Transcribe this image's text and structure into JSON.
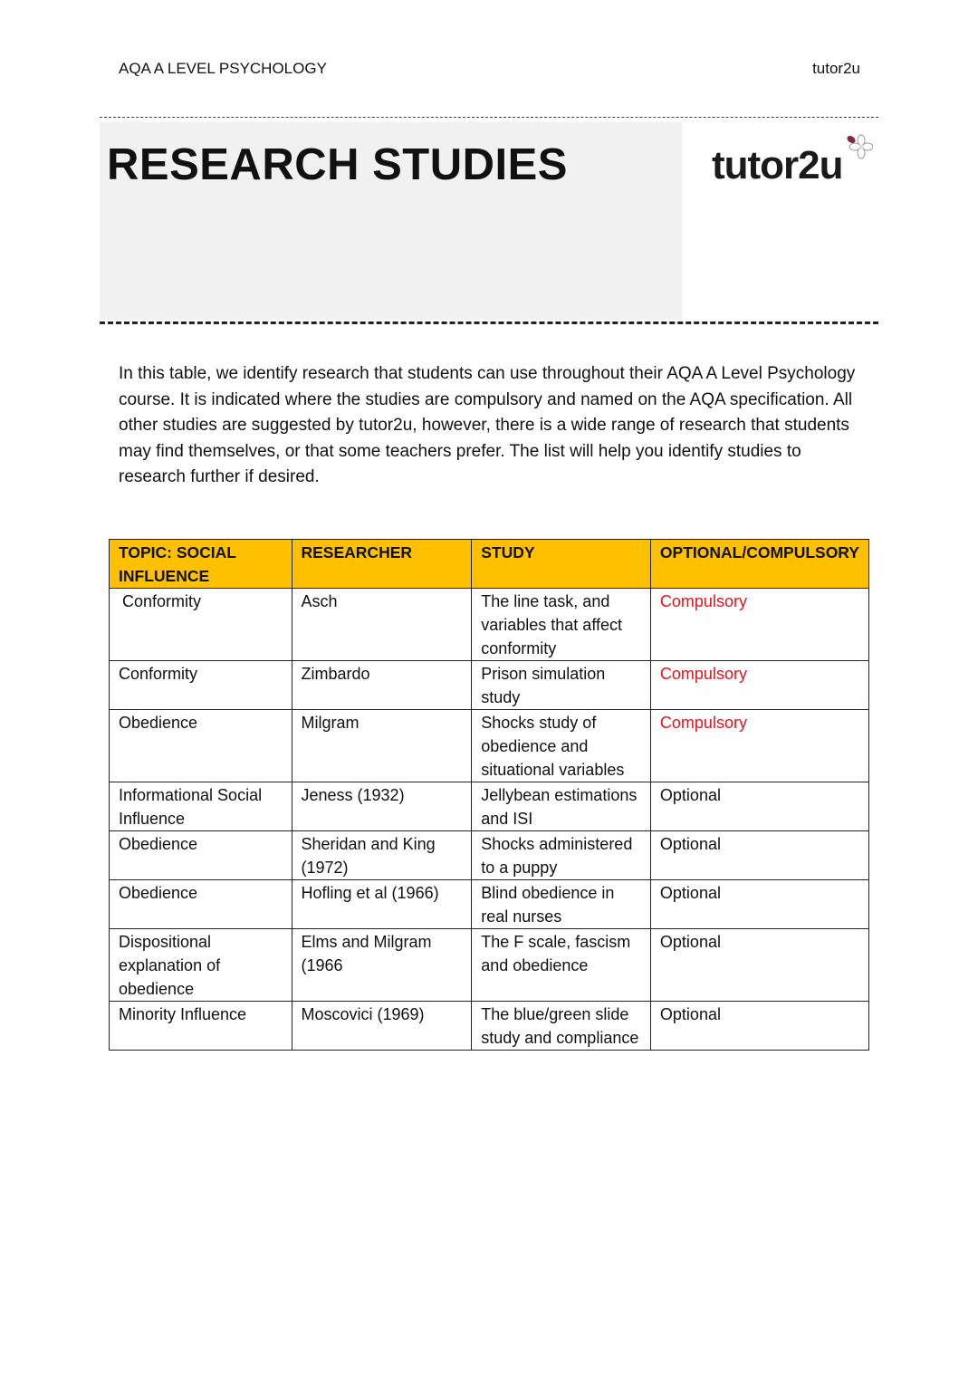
{
  "header": {
    "left": "AQA A LEVEL PSYCHOLOGY",
    "right": "tutor2u"
  },
  "banner": {
    "title": "RESEARCH STUDIES",
    "logo_text": "tutor2u"
  },
  "intro": "In this table, we identify research that students can use throughout their AQA A Level Psychology course. It is indicated where the studies are compulsory and named on the AQA specification. All other studies are suggested by tutor2u, however, there is a wide range of research that students may find themselves, or that some teachers prefer. The list will help you identify studies to research further if desired.",
  "colors": {
    "header_bg": "#ffc000",
    "compulsory": "#e0161e"
  },
  "table": {
    "columns": [
      "TOPIC: SOCIAL INFLUENCE",
      "RESEARCHER",
      "STUDY",
      "OPTIONAL/COMPULSORY"
    ],
    "rows": [
      {
        "topic": "Conformity",
        "researcher": "Asch",
        "study": "The line task, and variables that affect conformity",
        "status": "Compulsory"
      },
      {
        "topic": "Conformity",
        "researcher": "Zimbardo",
        "study": "Prison simulation study",
        "status": "Compulsory"
      },
      {
        "topic": "Obedience",
        "researcher": "Milgram",
        "study": "Shocks study of obedience and situational variables",
        "status": "Compulsory"
      },
      {
        "topic": "Informational Social Influence",
        "researcher": "Jeness (1932)",
        "study": "Jellybean estimations and ISI",
        "status": "Optional"
      },
      {
        "topic": "Obedience",
        "researcher": "Sheridan and King (1972)",
        "study": "Shocks administered to a puppy",
        "status": "Optional"
      },
      {
        "topic": "Obedience",
        "researcher": "Hofling et al (1966)",
        "study": "Blind obedience in real nurses",
        "status": "Optional"
      },
      {
        "topic": "Dispositional explanation of obedience",
        "researcher": "Elms and Milgram (1966",
        "study": "The F scale, fascism and obedience",
        "status": "Optional"
      },
      {
        "topic": "Minority Influence",
        "researcher": "Moscovici (1969)",
        "study": "The blue/green slide study and compliance",
        "status": "Optional"
      }
    ]
  }
}
